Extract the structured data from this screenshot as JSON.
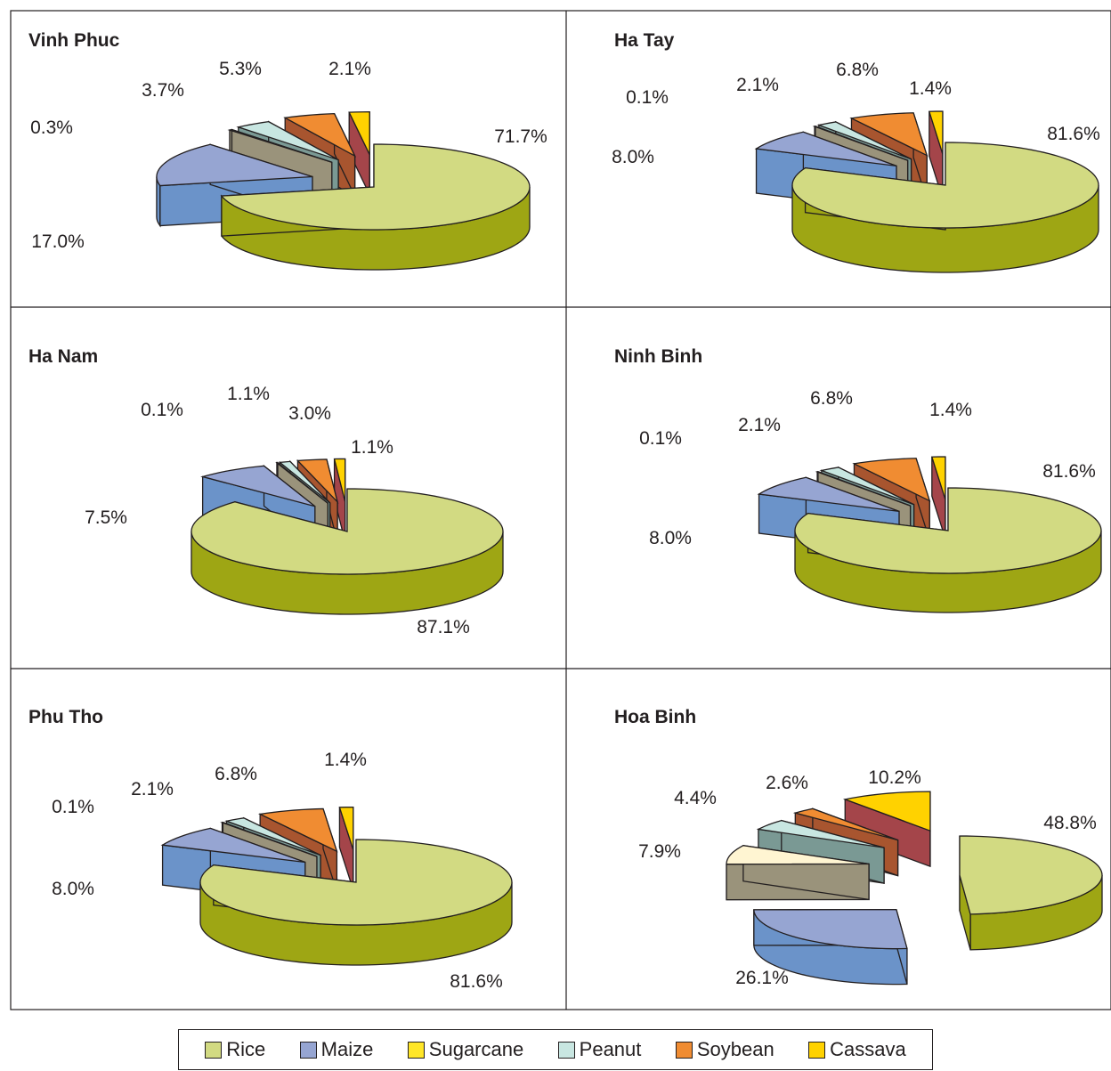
{
  "chart_data": [
    {
      "type": "pie",
      "title": "Vinh Phuc",
      "categories": [
        "Rice",
        "Maize",
        "Cassava",
        "Peanut",
        "Soybean",
        "Sugarcane"
      ],
      "labels": [
        "71.7%",
        "17.0%",
        "0.3%",
        "3.7%",
        "5.3%",
        "2.1%"
      ],
      "values": [
        71.7,
        17.0,
        0.3,
        3.7,
        5.3,
        2.1
      ]
    },
    {
      "type": "pie",
      "title": "Ha Tay",
      "categories": [
        "Rice",
        "Maize",
        "Cassava",
        "Peanut",
        "Soybean",
        "Sugarcane"
      ],
      "labels": [
        "81.6%",
        "8.0%",
        "0.1%",
        "2.1%",
        "6.8%",
        "1.4%"
      ],
      "values": [
        81.6,
        8.0,
        0.1,
        2.1,
        6.8,
        1.4
      ]
    },
    {
      "type": "pie",
      "title": "Ha Nam",
      "categories": [
        "Rice",
        "Maize",
        "Cassava",
        "Peanut",
        "Soybean",
        "Sugarcane"
      ],
      "labels": [
        "87.1%",
        "7.5%",
        "0.1%",
        "1.1%",
        "3.0%",
        "1.1%"
      ],
      "values": [
        87.1,
        7.5,
        0.1,
        1.1,
        3.0,
        1.1
      ]
    },
    {
      "type": "pie",
      "title": "Ninh Binh",
      "categories": [
        "Rice",
        "Maize",
        "Cassava",
        "Peanut",
        "Soybean",
        "Sugarcane"
      ],
      "labels": [
        "81.6%",
        "8.0%",
        "0.1%",
        "2.1%",
        "6.8%",
        "1.4%"
      ],
      "values": [
        81.6,
        8.0,
        0.1,
        2.1,
        6.8,
        1.4
      ]
    },
    {
      "type": "pie",
      "title": "Phu Tho",
      "categories": [
        "Rice",
        "Maize",
        "Cassava",
        "Peanut",
        "Soybean",
        "Sugarcane"
      ],
      "labels": [
        "81.6%",
        "8.0%",
        "0.1%",
        "2.1%",
        "6.8%",
        "1.4%"
      ],
      "values": [
        81.6,
        8.0,
        0.1,
        2.1,
        6.8,
        1.4
      ]
    },
    {
      "type": "pie",
      "title": "Hoa Binh",
      "categories": [
        "Rice",
        "Maize",
        "Cassava",
        "Peanut",
        "Soybean",
        "Sugarcane"
      ],
      "labels": [
        "48.8%",
        "26.1%",
        "7.9%",
        "4.4%",
        "2.6%",
        "10.2%"
      ],
      "values": [
        48.8,
        26.1,
        7.9,
        4.4,
        2.6,
        10.2
      ]
    }
  ],
  "legend": [
    {
      "label": "Rice",
      "color": "#d2da82"
    },
    {
      "label": "Maize",
      "color": "#96a5d2"
    },
    {
      "label": "Sugarcane",
      "color": "#ffe628"
    },
    {
      "label": "Peanut",
      "color": "#c8e6e1"
    },
    {
      "label": "Soybean",
      "color": "#f08c32"
    },
    {
      "label": "Cassava",
      "color": "#ffd200"
    }
  ],
  "colors": {
    "Rice": {
      "top": "#d2da82",
      "side": "#9ea614"
    },
    "Maize": {
      "top": "#96a5d2",
      "side": "#6b93c9"
    },
    "Cassava": {
      "top": "#a79f5c",
      "side": "#9a937b"
    },
    "Peanut": {
      "top": "#c8e6e1",
      "side": "#7a9994"
    },
    "Soybean": {
      "top": "#f08c32",
      "side": "#a8552f"
    },
    "Sugarcane": {
      "top": "#ffd200",
      "side": "#a4454a"
    },
    "HoaBinhCassava": {
      "top": "#fff5d2",
      "side": "#9a937b"
    }
  }
}
